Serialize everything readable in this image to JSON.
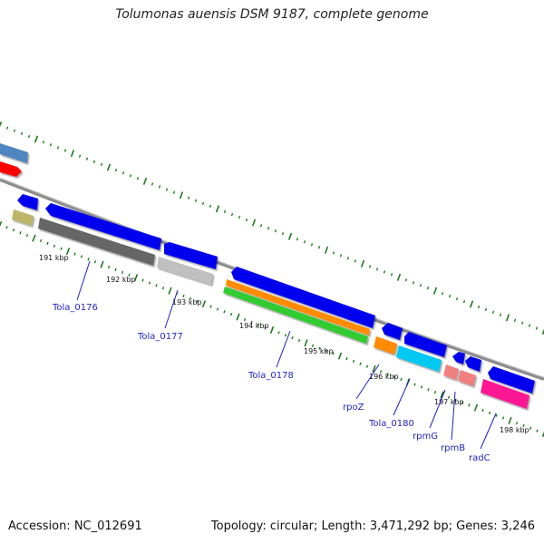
{
  "header": {
    "title": "Tolumonas auensis DSM 9187, complete genome"
  },
  "footer": {
    "accession": "Accession: NC_012691",
    "topology": "Topology: circular; Length: 3,471,292 bp; Genes: 3,246"
  },
  "colors": {
    "backbone": "#8c8c8c",
    "tick": "#1e7a1e",
    "cds_blue": "#0000ee",
    "rna_red": "#ff0000",
    "steel_blue": "#4f86c0",
    "olive": "#bdb66b",
    "dark_gray": "#666666",
    "light_gray": "#c0c0c0",
    "orange": "#ff8c00",
    "green": "#33cc33",
    "cyan": "#00c8f0",
    "salmon": "#f08080",
    "pink": "#ff1493",
    "label_blue": "#1f1fbf"
  },
  "kbp_labels": [
    "191 kbp",
    "192 kbp",
    "193 kbp",
    "194 kbp",
    "195 kbp",
    "196 kbp",
    "197 kbp",
    "198 kbp"
  ],
  "gene_labels": [
    "Tola_0176",
    "Tola_0177",
    "Tola_0178",
    "rpoZ",
    "Tola_0180",
    "rpmG",
    "rpmB",
    "radC"
  ]
}
